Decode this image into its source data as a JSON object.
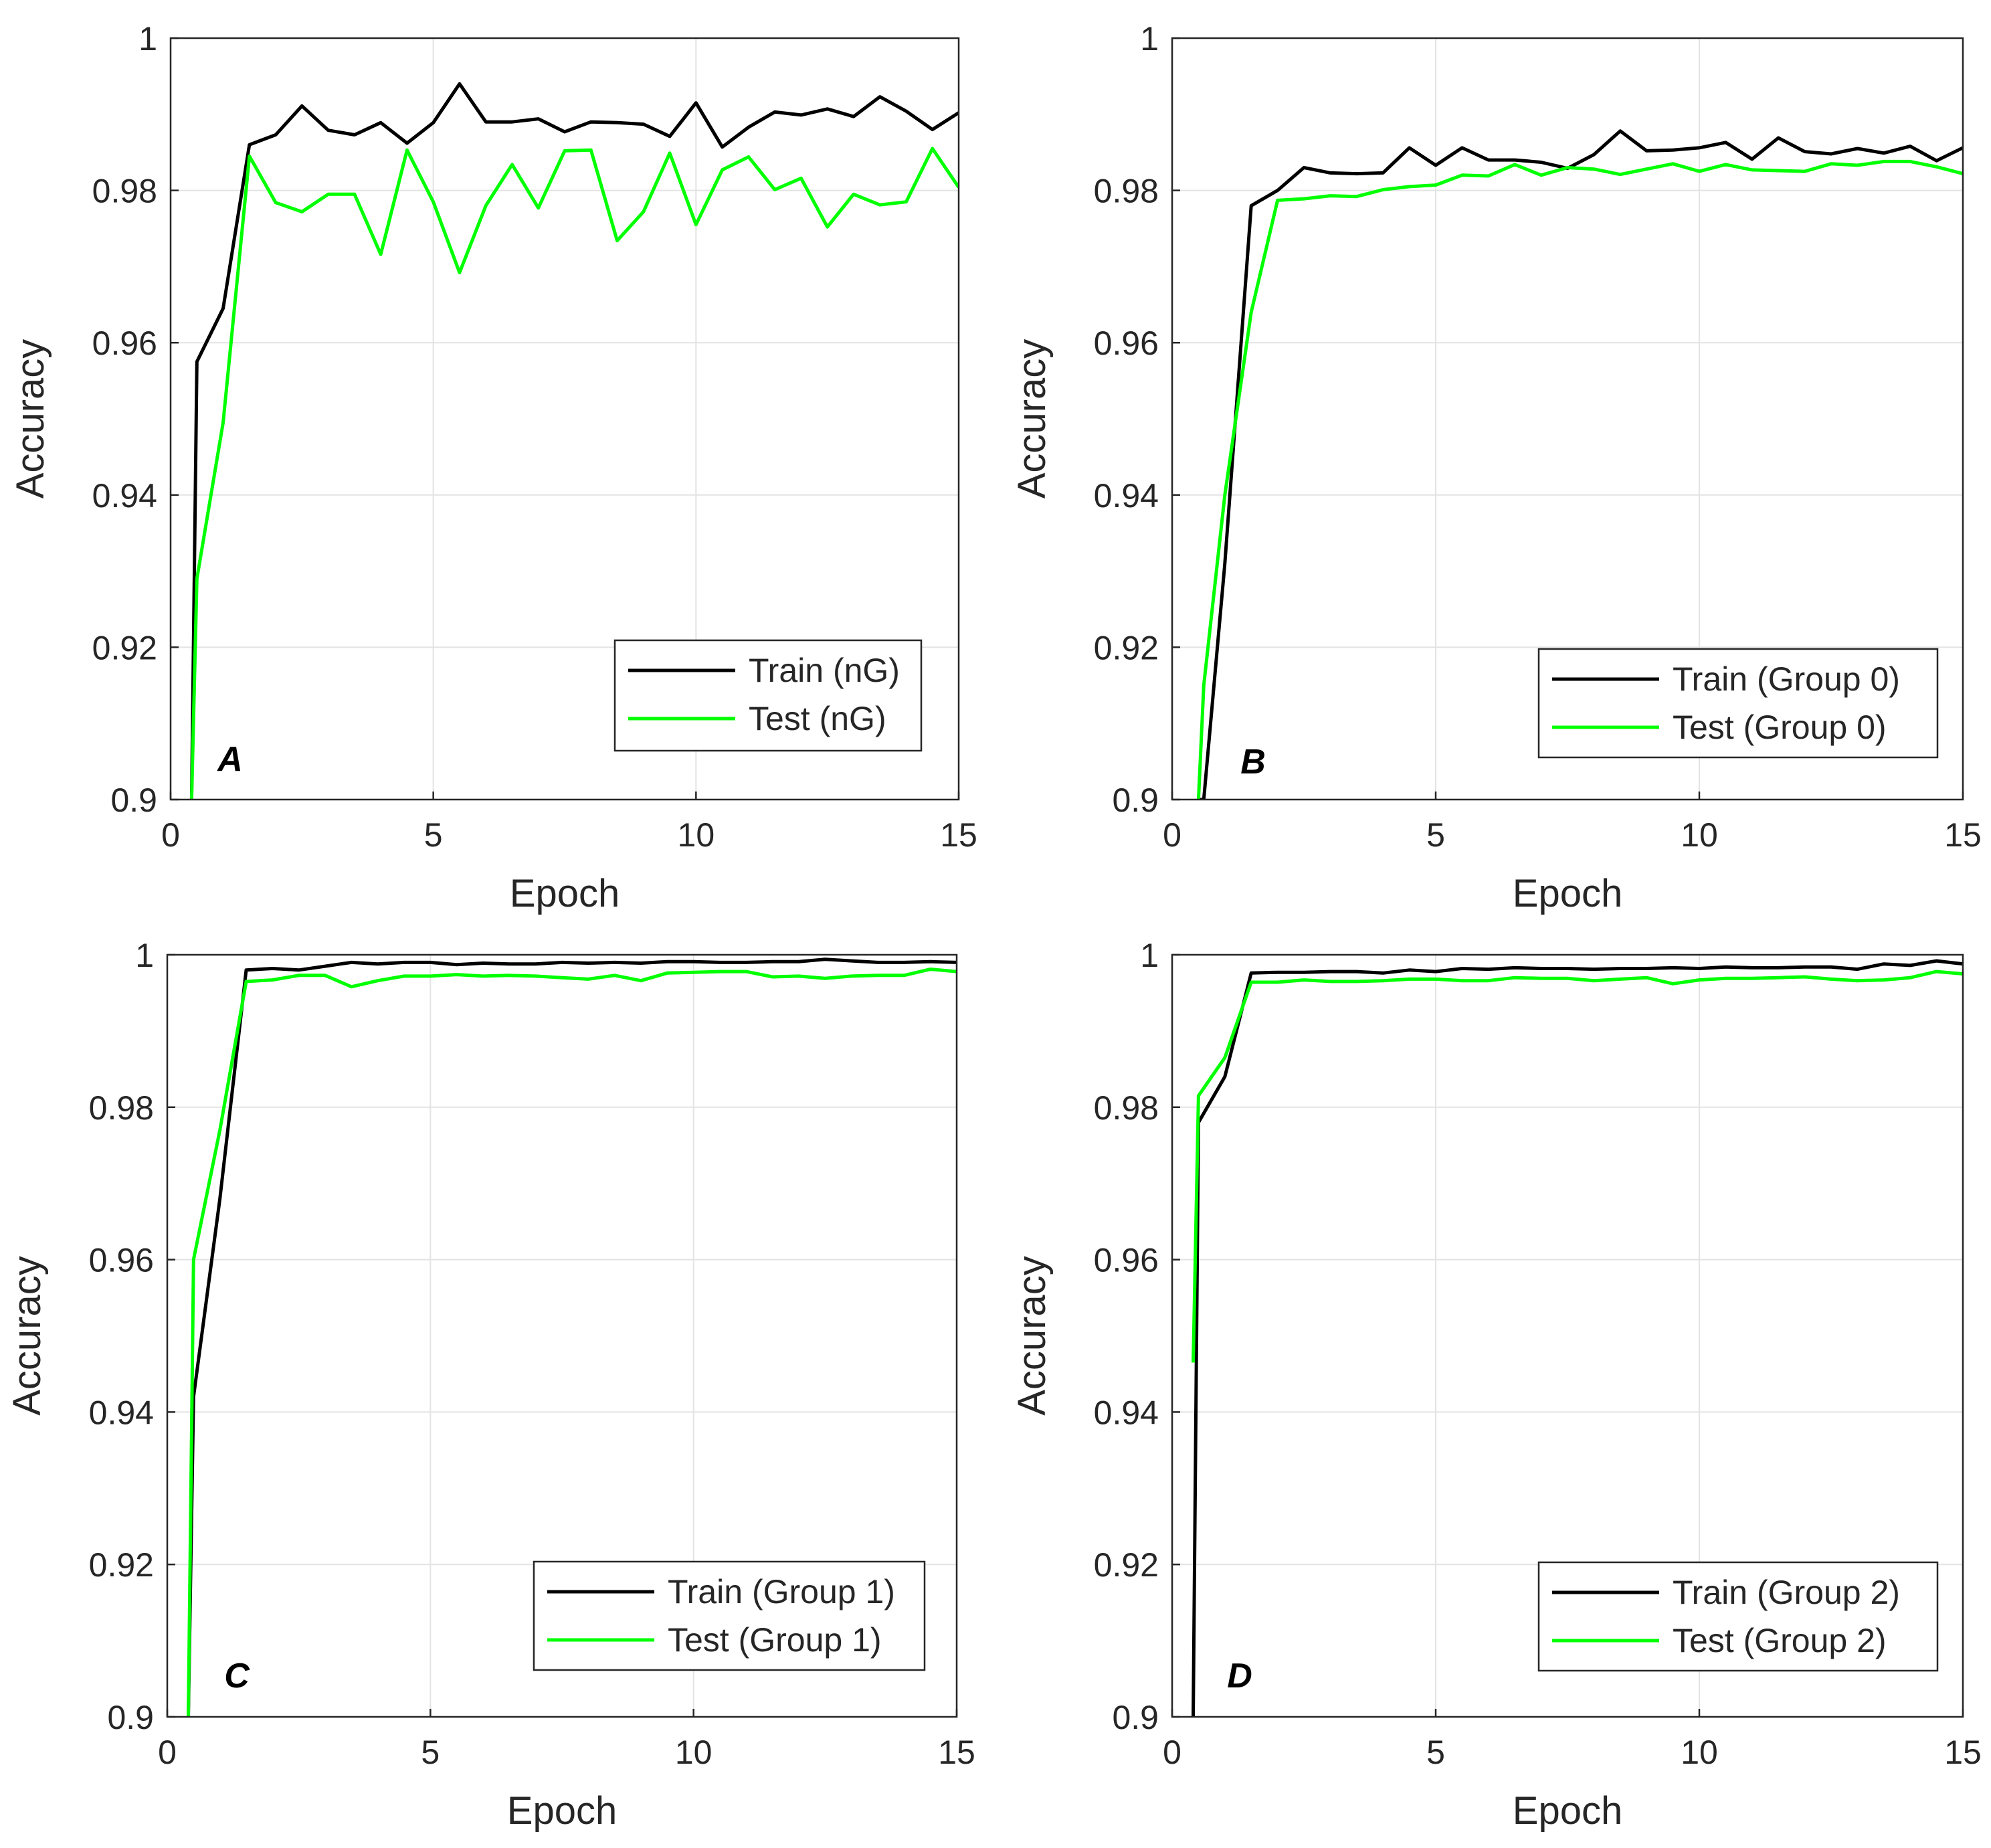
{
  "chart_data": [
    {
      "panel": "A",
      "type": "line",
      "xlabel": "Epoch",
      "ylabel": "Accuracy",
      "xlim": [
        0,
        15
      ],
      "ylim": [
        0.9,
        1
      ],
      "xticks": [
        "0",
        "5",
        "10",
        "15"
      ],
      "yticks": [
        "0.9",
        "0.92",
        "0.94",
        "0.96",
        "0.98",
        "1"
      ],
      "grid": true,
      "legend_position": "bottom-right",
      "x": [
        0.4,
        0.5,
        1,
        1.5,
        2,
        2.5,
        3,
        3.5,
        4,
        4.5,
        5,
        5.5,
        6,
        6.5,
        7,
        7.5,
        8,
        8.5,
        9,
        9.5,
        10,
        10.5,
        11,
        11.5,
        12,
        12.5,
        13,
        13.5,
        14,
        14.5,
        15
      ],
      "series": [
        {
          "name": "Train (nG)",
          "color": "#000000",
          "values": [
            0.9,
            0.9575,
            0.9645,
            0.986,
            0.9873,
            0.9911,
            0.9879,
            0.9873,
            0.9889,
            0.9862,
            0.9889,
            0.994,
            0.989,
            0.989,
            0.9894,
            0.9877,
            0.989,
            0.9889,
            0.9887,
            0.9871,
            0.9915,
            0.9857,
            0.9883,
            0.9903,
            0.9899,
            0.9907,
            0.9897,
            0.9923,
            0.9904,
            0.988,
            0.9902
          ]
        },
        {
          "name": "Test (nG)",
          "color": "#00ff00",
          "values": [
            0.9,
            0.929,
            0.9495,
            0.9845,
            0.9784,
            0.9772,
            0.9795,
            0.9795,
            0.9716,
            0.9853,
            0.9785,
            0.9692,
            0.978,
            0.9834,
            0.9777,
            0.9852,
            0.9853,
            0.9734,
            0.9772,
            0.9849,
            0.9755,
            0.9827,
            0.9844,
            0.9801,
            0.9816,
            0.9752,
            0.9795,
            0.9781,
            0.9785,
            0.9855,
            0.9804
          ]
        }
      ]
    },
    {
      "panel": "B",
      "type": "line",
      "xlabel": "Epoch",
      "ylabel": "Accuracy",
      "xlim": [
        0,
        15
      ],
      "ylim": [
        0.9,
        1
      ],
      "xticks": [
        "0",
        "5",
        "10",
        "15"
      ],
      "yticks": [
        "0.9",
        "0.92",
        "0.94",
        "0.96",
        "0.98",
        "1"
      ],
      "grid": true,
      "legend_position": "bottom-right",
      "x": [
        0.5,
        0.6,
        1,
        1.5,
        2,
        2.5,
        3,
        3.5,
        4,
        4.5,
        5,
        5.5,
        6,
        6.5,
        7,
        7.5,
        8,
        8.5,
        9,
        9.5,
        10,
        10.5,
        11,
        11.5,
        12,
        12.5,
        13,
        13.5,
        14,
        14.5,
        15
      ],
      "series": [
        {
          "name": "Train (Group 0)",
          "color": "#000000",
          "values": [
            0.9,
            0.9,
            0.931,
            0.978,
            0.98,
            0.983,
            0.9823,
            0.9822,
            0.9823,
            0.9856,
            0.9833,
            0.9856,
            0.984,
            0.984,
            0.9837,
            0.9829,
            0.9847,
            0.9878,
            0.9852,
            0.9853,
            0.9856,
            0.9863,
            0.9841,
            0.9869,
            0.9851,
            0.9848,
            0.9855,
            0.9849,
            0.9858,
            0.9839,
            0.9856
          ]
        },
        {
          "name": "Test (Group 0)",
          "color": "#00ff00",
          "values": [
            0.9,
            0.915,
            0.94,
            0.964,
            0.9787,
            0.9789,
            0.9793,
            0.9792,
            0.9801,
            0.9805,
            0.9807,
            0.982,
            0.9819,
            0.9834,
            0.982,
            0.983,
            0.9828,
            0.9821,
            0.9828,
            0.9835,
            0.9825,
            0.9834,
            0.9827,
            0.9826,
            0.9825,
            0.9835,
            0.9833,
            0.9838,
            0.9838,
            0.9831,
            0.9822
          ]
        }
      ]
    },
    {
      "panel": "C",
      "type": "line",
      "xlabel": "Epoch",
      "ylabel": "Accuracy",
      "xlim": [
        0,
        15
      ],
      "ylim": [
        0.9,
        1
      ],
      "xticks": [
        "0",
        "5",
        "10",
        "15"
      ],
      "yticks": [
        "0.9",
        "0.92",
        "0.94",
        "0.96",
        "0.98",
        "1"
      ],
      "grid": true,
      "legend_position": "bottom-right",
      "x": [
        0.4,
        0.5,
        1,
        1.5,
        2,
        2.5,
        3,
        3.5,
        4,
        4.5,
        5,
        5.5,
        6,
        6.5,
        7,
        7.5,
        8,
        8.5,
        9,
        9.5,
        10,
        10.5,
        11,
        11.5,
        12,
        12.5,
        13,
        13.5,
        14,
        14.5,
        15
      ],
      "series": [
        {
          "name": "Train (Group 1)",
          "color": "#000000",
          "values": [
            0.9,
            0.942,
            0.968,
            0.998,
            0.9982,
            0.998,
            0.9985,
            0.999,
            0.9988,
            0.999,
            0.999,
            0.9987,
            0.9989,
            0.9988,
            0.9988,
            0.999,
            0.9989,
            0.999,
            0.9989,
            0.9991,
            0.9991,
            0.999,
            0.999,
            0.9991,
            0.9991,
            0.9994,
            0.9992,
            0.999,
            0.999,
            0.9991,
            0.999
          ]
        },
        {
          "name": "Test (Group 1)",
          "color": "#00ff00",
          "values": [
            0.9,
            0.96,
            0.977,
            0.9965,
            0.9967,
            0.9973,
            0.9973,
            0.9958,
            0.9966,
            0.9972,
            0.9972,
            0.9974,
            0.9972,
            0.9973,
            0.9972,
            0.997,
            0.9968,
            0.9973,
            0.9966,
            0.9976,
            0.9977,
            0.9978,
            0.9978,
            0.9971,
            0.9972,
            0.9969,
            0.9972,
            0.9973,
            0.9973,
            0.9981,
            0.9978
          ]
        }
      ]
    },
    {
      "panel": "D",
      "type": "line",
      "xlabel": "Epoch",
      "ylabel": "Accuracy",
      "xlim": [
        0,
        15
      ],
      "ylim": [
        0.9,
        1
      ],
      "xticks": [
        "0",
        "5",
        "10",
        "15"
      ],
      "yticks": [
        "0.9",
        "0.92",
        "0.94",
        "0.96",
        "0.98",
        "1"
      ],
      "grid": true,
      "legend_position": "bottom-right",
      "x": [
        0.4,
        0.5,
        1,
        1.5,
        2,
        2.5,
        3,
        3.5,
        4,
        4.5,
        5,
        5.5,
        6,
        6.5,
        7,
        7.5,
        8,
        8.5,
        9,
        9.5,
        10,
        10.5,
        11,
        11.5,
        12,
        12.5,
        13,
        13.5,
        14,
        14.5,
        15
      ],
      "series": [
        {
          "name": "Train (Group 2)",
          "color": "#000000",
          "values": [
            0.9,
            0.978,
            0.984,
            0.9976,
            0.9977,
            0.9977,
            0.9978,
            0.9978,
            0.9976,
            0.998,
            0.9978,
            0.9982,
            0.9981,
            0.9983,
            0.9982,
            0.9982,
            0.9981,
            0.9982,
            0.9982,
            0.9983,
            0.9982,
            0.9984,
            0.9983,
            0.9983,
            0.9984,
            0.9984,
            0.9981,
            0.9988,
            0.9986,
            0.9992,
            0.9988
          ]
        },
        {
          "name": "Test (Group 2)",
          "color": "#00ff00",
          "values": [
            0.9465,
            0.9815,
            0.9865,
            0.9964,
            0.9964,
            0.9967,
            0.9965,
            0.9965,
            0.9966,
            0.9968,
            0.9968,
            0.9966,
            0.9966,
            0.997,
            0.9969,
            0.9969,
            0.9966,
            0.9968,
            0.997,
            0.9962,
            0.9967,
            0.9969,
            0.9969,
            0.997,
            0.9971,
            0.9968,
            0.9966,
            0.9967,
            0.997,
            0.9978,
            0.9975
          ]
        }
      ]
    }
  ]
}
